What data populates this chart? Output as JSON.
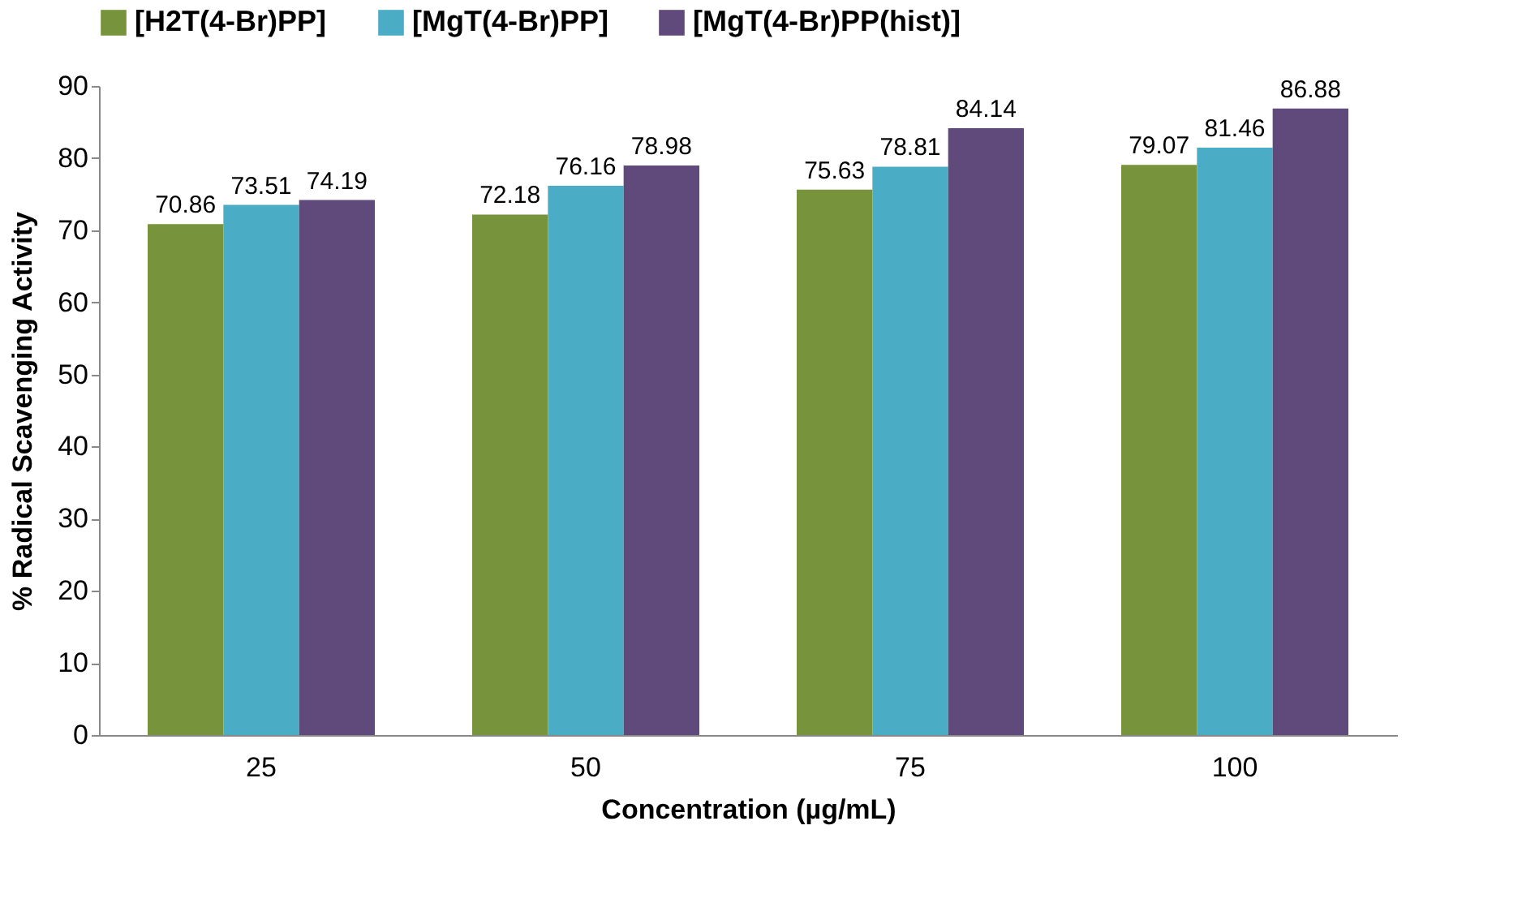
{
  "chart_data": {
    "type": "bar",
    "xlabel": "Concentration (µg/mL)",
    "ylabel": "% Radical Scavenging Activity",
    "categories": [
      "25",
      "50",
      "75",
      "100"
    ],
    "series": [
      {
        "name": "[H2T(4-Br)PP]",
        "color": "#77933c",
        "values": [
          70.86,
          72.18,
          75.63,
          79.07
        ]
      },
      {
        "name": "[MgT(4-Br)PP]",
        "color": "#4bacc6",
        "values": [
          73.51,
          76.16,
          78.81,
          81.46
        ]
      },
      {
        "name": "[MgT(4-Br)PP(hist)]",
        "color": "#604a7b",
        "values": [
          74.19,
          78.98,
          84.14,
          86.88
        ]
      }
    ],
    "ylim": [
      0,
      90
    ],
    "yticks": [
      0,
      10,
      20,
      30,
      40,
      50,
      60,
      70,
      80,
      90
    ],
    "data_labels": true,
    "legend": "top",
    "grid": false
  }
}
